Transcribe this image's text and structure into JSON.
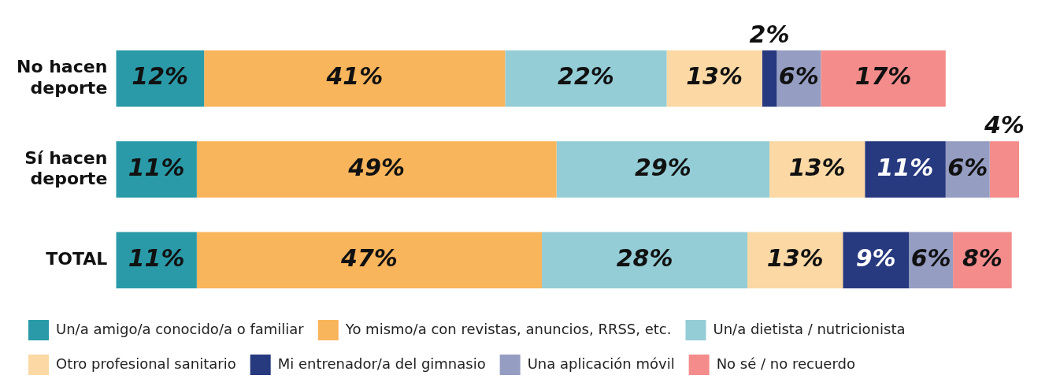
{
  "chart_data": {
    "type": "bar",
    "orientation": "horizontal",
    "stacked": true,
    "legend": "bottom",
    "tick_labels": "y",
    "categories": [
      "No hacen\ndeporte",
      "Sí hacen\ndeporte",
      "TOTAL"
    ],
    "series": [
      {
        "name": "Un/a amigo/a conocido/a o familiar",
        "color": "#2a9aa8",
        "values": [
          12,
          11,
          11
        ],
        "value_labels": [
          "12%",
          "11%",
          "11%"
        ]
      },
      {
        "name": "Yo mismo/a con revistas, anuncios, RRSS, etc.",
        "color": "#f9b55c",
        "values": [
          41,
          49,
          47
        ],
        "value_labels": [
          "41%",
          "49%",
          "47%"
        ]
      },
      {
        "name": "Un/a dietista / nutricionista",
        "color": "#94cdd6",
        "values": [
          22,
          29,
          28
        ],
        "value_labels": [
          "22%",
          "29%",
          "28%"
        ]
      },
      {
        "name": "Otro profesional sanitario",
        "color": "#fbd8a4",
        "values": [
          13,
          13,
          13
        ],
        "value_labels": [
          "13%",
          "13%",
          "13%"
        ]
      },
      {
        "name": "Mi entrenador/a del gimnasio",
        "color": "#27397f",
        "values": [
          2,
          11,
          9
        ],
        "value_labels": [
          "2%",
          "11%",
          "9%"
        ]
      },
      {
        "name": "Una aplicación móvil",
        "color": "#959dc2",
        "values": [
          6,
          6,
          6
        ],
        "value_labels": [
          "6%",
          "6%",
          "6%"
        ]
      },
      {
        "name": "No sé / no recuerdo",
        "color": "#f48c8c",
        "values": [
          17,
          4,
          8
        ],
        "value_labels": [
          "17%",
          "4%",
          "8%"
        ]
      }
    ]
  }
}
